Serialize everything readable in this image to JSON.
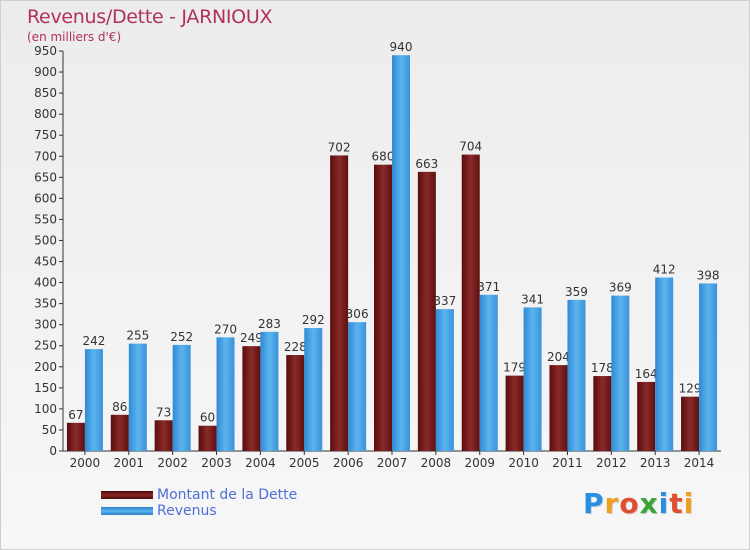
{
  "header": {
    "title": "Revenus/Dette - JARNIOUX",
    "subtitle": "(en milliers d'€)"
  },
  "chart_data": {
    "type": "bar",
    "categories": [
      "2000",
      "2001",
      "2002",
      "2003",
      "2004",
      "2005",
      "2006",
      "2007",
      "2008",
      "2009",
      "2010",
      "2011",
      "2012",
      "2013",
      "2014"
    ],
    "series": [
      {
        "name": "Montant de la Dette",
        "color": "#7a1a1a",
        "values": [
          67,
          86,
          73,
          60,
          249,
          228,
          702,
          680,
          663,
          704,
          179,
          204,
          178,
          164,
          129
        ]
      },
      {
        "name": "Revenus",
        "color": "#3f9fe0",
        "values": [
          242,
          255,
          252,
          270,
          283,
          292,
          306,
          940,
          337,
          371,
          341,
          359,
          369,
          412,
          398
        ]
      }
    ],
    "ylim": [
      0,
      950
    ],
    "ytick_step": 50,
    "grid": false,
    "legend_position": "bottom-left"
  },
  "legend": {
    "items": [
      {
        "label": "Montant de la Dette",
        "color": "#7a1a1a"
      },
      {
        "label": "Revenus",
        "color": "#3f9fe0"
      }
    ]
  },
  "brand": {
    "letters": [
      "P",
      "r",
      "o",
      "x",
      "i",
      "t",
      "i"
    ],
    "colors": [
      "#2a8fe0",
      "#f0a020",
      "#e05030",
      "#3aa43a",
      "#2a8fe0",
      "#e05030",
      "#f0a020"
    ]
  }
}
